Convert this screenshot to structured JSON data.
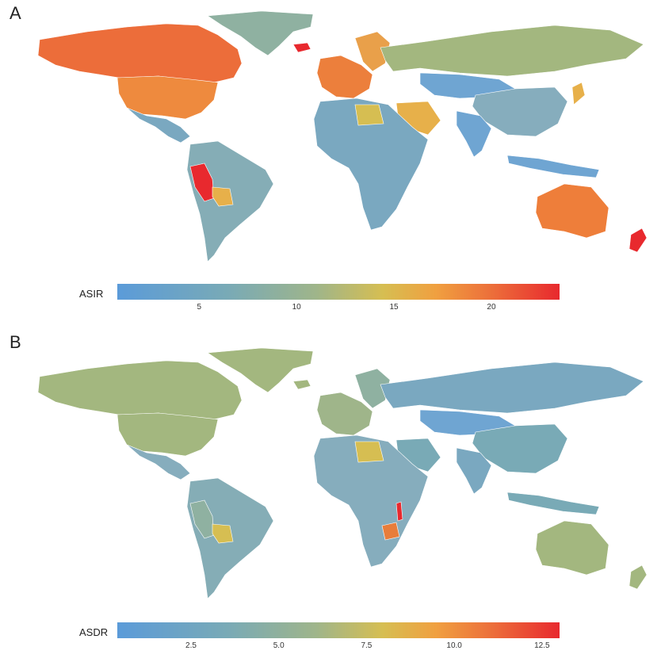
{
  "panels": [
    {
      "label": "A",
      "legend_title": "ASIR",
      "legend_min": 0.8,
      "legend_max": 23.5,
      "ticks": [
        "5",
        "10",
        "15",
        "20"
      ],
      "tick_values": [
        5,
        10,
        15,
        20
      ],
      "colors": {
        "north_america": "#ec6d3a",
        "usa": "#ee8a3e",
        "greenland": "#8fb1a1",
        "europe_west": "#ec7f3c",
        "scandinavia": "#e9a04a",
        "russia": "#a3b77f",
        "central_asia": "#6fa5d2",
        "china": "#86adbd",
        "india": "#6fa5d2",
        "africa": "#7aa8c0",
        "south_america": "#85adb6",
        "peru": "#e8292e",
        "bolivia": "#e7b04a",
        "australia": "#ee7e3a",
        "new_zealand": "#e8292e",
        "iceland": "#e8292e",
        "libya": "#d6be52",
        "indonesia": "#6fa5d2"
      }
    },
    {
      "label": "B",
      "legend_title": "ASDR",
      "legend_min": 0.4,
      "legend_max": 13.0,
      "ticks": [
        "2.5",
        "5.0",
        "7.5",
        "10.0",
        "12.5"
      ],
      "tick_values": [
        2.5,
        5.0,
        7.5,
        10.0,
        12.5
      ],
      "colors": {
        "north_america": "#a3b77f",
        "usa": "#a3b77f",
        "greenland": "#a3b77f",
        "europe_west": "#9fb58a",
        "scandinavia": "#8fb1a1",
        "russia": "#7aa8c0",
        "central_asia": "#6fa5d2",
        "china": "#79aab6",
        "india": "#7aa8c0",
        "africa": "#86adbd",
        "south_america": "#85adb6",
        "peru": "#8fb1a1",
        "bolivia": "#d6be52",
        "australia": "#a3b77f",
        "new_zealand": "#a3b77f",
        "iceland": "#a3b77f",
        "libya": "#d6be52",
        "indonesia": "#79aab6",
        "zimbabwe": "#e87d3a",
        "malawi": "#e8292e"
      }
    }
  ]
}
